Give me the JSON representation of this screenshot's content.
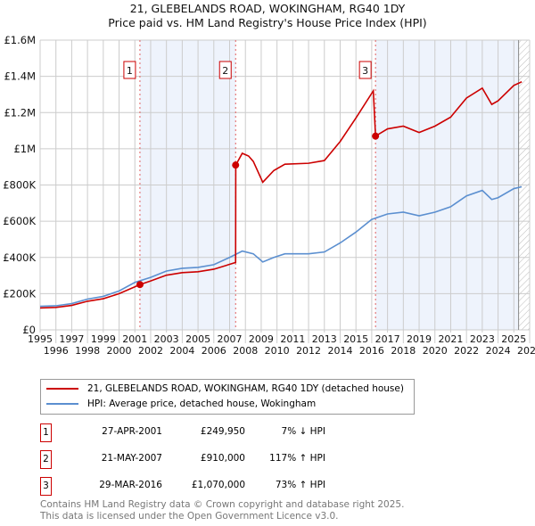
{
  "chart_data": {
    "type": "line",
    "title": "21, GLEBELANDS ROAD, WOKINGHAM, RG40 1DY",
    "subtitle": "Price paid vs. HM Land Registry's House Price Index (HPI)",
    "xlim": [
      1995,
      2026
    ],
    "ylim": [
      0,
      1600000
    ],
    "y_ticks": [
      {
        "v": 0,
        "label": "£0"
      },
      {
        "v": 200000,
        "label": "£200K"
      },
      {
        "v": 400000,
        "label": "£400K"
      },
      {
        "v": 600000,
        "label": "£600K"
      },
      {
        "v": 800000,
        "label": "£800K"
      },
      {
        "v": 1000000,
        "label": "£1M"
      },
      {
        "v": 1200000,
        "label": "£1.2M"
      },
      {
        "v": 1400000,
        "label": "£1.4M"
      },
      {
        "v": 1600000,
        "label": "£1.6M"
      }
    ],
    "x_ticks": [
      "1995",
      "1996",
      "1997",
      "1998",
      "1999",
      "2000",
      "2001",
      "2002",
      "2003",
      "2004",
      "2005",
      "2006",
      "2007",
      "2008",
      "2009",
      "2010",
      "2011",
      "2012",
      "2013",
      "2014",
      "2015",
      "2016",
      "2017",
      "2018",
      "2019",
      "2020",
      "2021",
      "2022",
      "2023",
      "2024",
      "2025",
      "2026"
    ],
    "series": [
      {
        "name": "21, GLEBELANDS ROAD, WOKINGHAM, RG40 1DY (detached house)",
        "color": "#cc0000",
        "x": [
          1995,
          1996,
          1997,
          1998,
          1999,
          2000,
          2001.32,
          2002,
          2003,
          2004,
          2005,
          2006,
          2007.38,
          2007.39,
          2007.8,
          2008.2,
          2008.5,
          2009.1,
          2009.8,
          2010.5,
          2012,
          2013,
          2014,
          2015,
          2016.1,
          2016.24,
          2017,
          2018,
          2019,
          2020,
          2021,
          2022,
          2023,
          2023.6,
          2024,
          2025,
          2025.5
        ],
        "y": [
          121000,
          124000,
          135000,
          158000,
          172000,
          200000,
          249950,
          270000,
          302000,
          316000,
          321000,
          335000,
          372000,
          910000,
          975000,
          960000,
          930000,
          815000,
          880000,
          915000,
          920000,
          935000,
          1040000,
          1170000,
          1320000,
          1070000,
          1110000,
          1125000,
          1090000,
          1125000,
          1175000,
          1280000,
          1335000,
          1245000,
          1265000,
          1350000,
          1370000
        ]
      },
      {
        "name": "HPI: Average price, detached house, Wokingham",
        "color": "#5b8fd0",
        "x": [
          1995,
          1996,
          1997,
          1998,
          1999,
          2000,
          2001,
          2002,
          2003,
          2004,
          2005,
          2006,
          2007,
          2007.8,
          2008.5,
          2009.1,
          2009.8,
          2010.5,
          2012,
          2013,
          2014,
          2015,
          2016,
          2017,
          2018,
          2019,
          2020,
          2021,
          2022,
          2023,
          2023.6,
          2024,
          2025,
          2025.5
        ],
        "y": [
          130000,
          133000,
          145000,
          170000,
          185000,
          215000,
          262000,
          290000,
          325000,
          340000,
          345000,
          360000,
          400000,
          435000,
          420000,
          375000,
          400000,
          420000,
          420000,
          430000,
          480000,
          540000,
          610000,
          640000,
          650000,
          630000,
          650000,
          680000,
          740000,
          770000,
          720000,
          730000,
          780000,
          790000
        ]
      }
    ],
    "sales": [
      {
        "n": "1",
        "x": 2001.32,
        "y": 249950,
        "date": "27-APR-2001",
        "price": "£249,950",
        "hpi": "7% ↓ HPI"
      },
      {
        "n": "2",
        "x": 2007.38,
        "y": 910000,
        "date": "21-MAY-2007",
        "price": "£910,000",
        "hpi": "117% ↑ HPI"
      },
      {
        "n": "3",
        "x": 2016.24,
        "y": 1070000,
        "date": "29-MAR-2016",
        "price": "£1,070,000",
        "hpi": "73% ↑ HPI"
      }
    ],
    "shaded": [
      [
        2001.32,
        2007.38
      ],
      [
        2016.24,
        2025.3
      ]
    ],
    "hatched_from": 2025.3
  },
  "footer": {
    "line1": "Contains HM Land Registry data © Crown copyright and database right 2025.",
    "line2": "This data is licensed under the Open Government Licence v3.0."
  }
}
